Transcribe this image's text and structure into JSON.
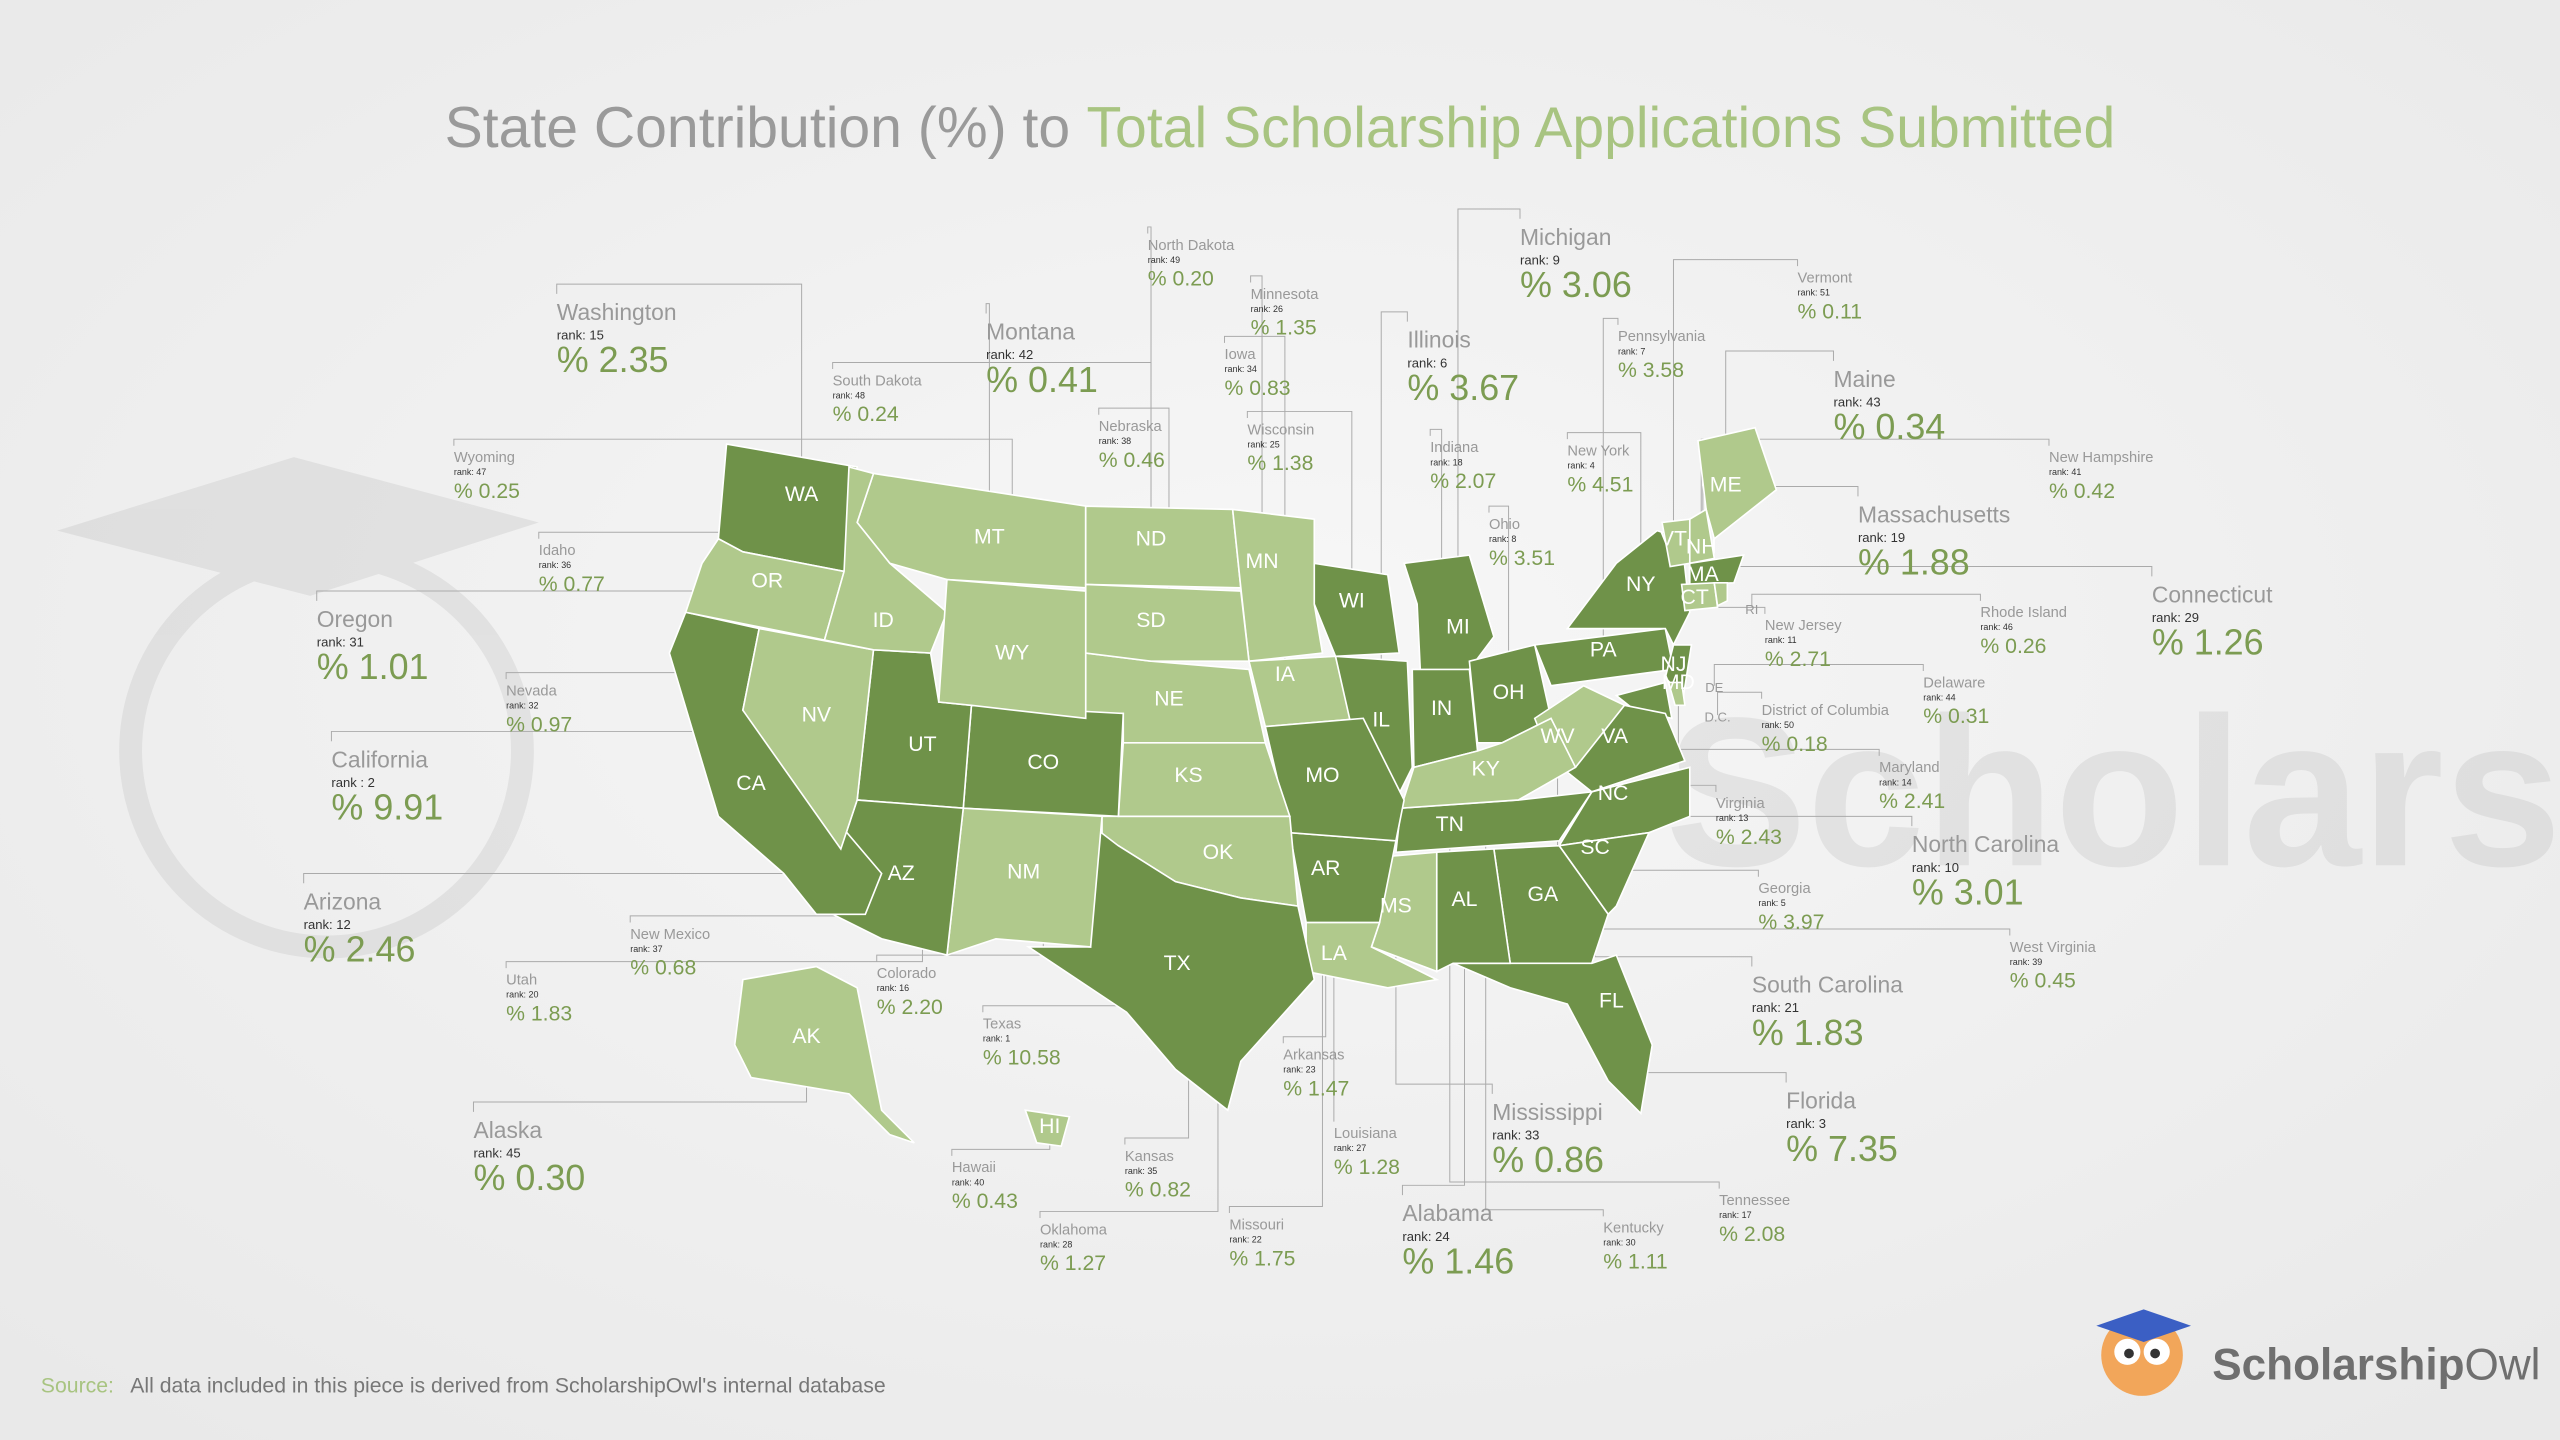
{
  "title": {
    "lead": "State Contribution (%) to",
    "highlight": "Total Scholarship Applications Submitted"
  },
  "colors": {
    "dark": "#6f9249",
    "light": "#b0c98c"
  },
  "states": [
    {
      "abbr": "WA",
      "name": "Washington",
      "rank": "rank: 15",
      "share": "% 2.35",
      "shade": "dark"
    },
    {
      "abbr": "MT",
      "name": "Montana",
      "rank": "rank: 42",
      "share": "% 0.41",
      "shade": "light"
    },
    {
      "abbr": "ND",
      "name": "North Dakota",
      "rank": "rank: 49",
      "share": "% 0.20",
      "shade": "light"
    },
    {
      "abbr": "MN",
      "name": "Minnesota",
      "rank": "rank: 26",
      "share": "% 1.35",
      "shade": "light"
    },
    {
      "abbr": "IA",
      "name": "Iowa",
      "rank": "rank: 34",
      "share": "% 0.83",
      "shade": "light"
    },
    {
      "abbr": "WI",
      "name": "Wisconsin",
      "rank": "rank: 25",
      "share": "% 1.38",
      "shade": "dark"
    },
    {
      "abbr": "NE",
      "name": "Nebraska",
      "rank": "rank: 38",
      "share": "% 0.46",
      "shade": "light"
    },
    {
      "abbr": "SD",
      "name": "South Dakota",
      "rank": "rank: 48",
      "share": "% 0.24",
      "shade": "light"
    },
    {
      "abbr": "MI",
      "name": "Michigan",
      "rank": "rank: 9",
      "share": "% 3.06",
      "shade": "dark"
    },
    {
      "abbr": "IL",
      "name": "Illinois",
      "rank": "rank: 6",
      "share": "% 3.67",
      "shade": "dark"
    },
    {
      "abbr": "IN",
      "name": "Indiana",
      "rank": "rank: 18",
      "share": "% 2.07",
      "shade": "dark"
    },
    {
      "abbr": "OH",
      "name": "Ohio",
      "rank": "rank: 8",
      "share": "% 3.51",
      "shade": "dark"
    },
    {
      "abbr": "PA",
      "name": "Pennsylvania",
      "rank": "rank: 7",
      "share": "% 3.58",
      "shade": "dark"
    },
    {
      "abbr": "NY",
      "name": "New York",
      "rank": "rank: 4",
      "share": "% 4.51",
      "shade": "dark"
    },
    {
      "abbr": "VT",
      "name": "Vermont",
      "rank": "rank: 51",
      "share": "% 0.11",
      "shade": "light"
    },
    {
      "abbr": "ME",
      "name": "Maine",
      "rank": "rank: 43",
      "share": "% 0.34",
      "shade": "light"
    },
    {
      "abbr": "NH",
      "name": "New Hampshire",
      "rank": "rank: 41",
      "share": "% 0.42",
      "shade": "light"
    },
    {
      "abbr": "MA",
      "name": "Massachusetts",
      "rank": "rank: 19",
      "share": "% 1.88",
      "shade": "dark"
    },
    {
      "abbr": "CT",
      "name": "Connecticut",
      "rank": "rank: 29",
      "share": "% 1.26",
      "shade": "light"
    },
    {
      "abbr": "RI",
      "name": "Rhode Island",
      "rank": "rank: 46",
      "share": "% 0.26",
      "shade": "light"
    },
    {
      "abbr": "NJ",
      "name": "New Jersey",
      "rank": "rank: 11",
      "share": "% 2.71",
      "shade": "dark"
    },
    {
      "abbr": "DE",
      "name": "Delaware",
      "rank": "rank: 44",
      "share": "% 0.31",
      "shade": "light"
    },
    {
      "abbr": "D.C.",
      "name": "District of Columbia",
      "rank": "rank: 50",
      "share": "% 0.18",
      "shade": "light"
    },
    {
      "abbr": "MD",
      "name": "Maryland",
      "rank": "rank: 14",
      "share": "% 2.41",
      "shade": "dark"
    },
    {
      "abbr": "VA",
      "name": "Virginia",
      "rank": "rank: 13",
      "share": "% 2.43",
      "shade": "dark"
    },
    {
      "abbr": "WV",
      "name": "West Virginia",
      "rank": "rank: 39",
      "share": "% 0.45",
      "shade": "light"
    },
    {
      "abbr": "NC",
      "name": "North Carolina",
      "rank": "rank: 10",
      "share": "% 3.01",
      "shade": "dark"
    },
    {
      "abbr": "SC",
      "name": "South Carolina",
      "rank": "rank: 21",
      "share": "% 1.83",
      "shade": "dark"
    },
    {
      "abbr": "GA",
      "name": "Georgia",
      "rank": "rank: 5",
      "share": "% 3.97",
      "shade": "dark"
    },
    {
      "abbr": "FL",
      "name": "Florida",
      "rank": "rank: 3",
      "share": "% 7.35",
      "shade": "dark"
    },
    {
      "abbr": "TN",
      "name": "Tennessee",
      "rank": "rank: 17",
      "share": "% 2.08",
      "shade": "dark"
    },
    {
      "abbr": "KY",
      "name": "Kentucky",
      "rank": "rank: 30",
      "share": "% 1.11",
      "shade": "light"
    },
    {
      "abbr": "AL",
      "name": "Alabama",
      "rank": "rank: 24",
      "share": "% 1.46",
      "shade": "dark"
    },
    {
      "abbr": "MS",
      "name": "Mississippi",
      "rank": "rank: 33",
      "share": "% 0.86",
      "shade": "light"
    },
    {
      "abbr": "LA",
      "name": "Louisiana",
      "rank": "rank: 27",
      "share": "% 1.28",
      "shade": "light"
    },
    {
      "abbr": "AR",
      "name": "Arkansas",
      "rank": "rank: 23",
      "share": "% 1.47",
      "shade": "dark"
    },
    {
      "abbr": "MO",
      "name": "Missouri",
      "rank": "rank: 22",
      "share": "% 1.75",
      "shade": "dark"
    },
    {
      "abbr": "OK",
      "name": "Oklahoma",
      "rank": "rank: 28",
      "share": "% 1.27",
      "shade": "light"
    },
    {
      "abbr": "KS",
      "name": "Kansas",
      "rank": "rank: 35",
      "share": "% 0.82",
      "shade": "light"
    },
    {
      "abbr": "TX",
      "name": "Texas",
      "rank": "rank: 1",
      "share": "% 10.58",
      "shade": "dark"
    },
    {
      "abbr": "HI",
      "name": "Hawaii",
      "rank": "rank: 40",
      "share": "% 0.43",
      "shade": "light"
    },
    {
      "abbr": "CO",
      "name": "Colorado",
      "rank": "rank: 16",
      "share": "% 2.20",
      "shade": "dark"
    },
    {
      "abbr": "NM",
      "name": "New Mexico",
      "rank": "rank: 37",
      "share": "% 0.68",
      "shade": "light"
    },
    {
      "abbr": "UT",
      "name": "Utah",
      "rank": "rank: 20",
      "share": "% 1.83",
      "shade": "dark"
    },
    {
      "abbr": "AZ",
      "name": "Arizona",
      "rank": "rank: 12",
      "share": "% 2.46",
      "shade": "dark"
    },
    {
      "abbr": "AK",
      "name": "Alaska",
      "rank": "rank: 45",
      "share": "% 0.30",
      "shade": "light"
    },
    {
      "abbr": "CA",
      "name": "California",
      "rank": "rank : 2",
      "share": "% 9.91",
      "shade": "dark"
    },
    {
      "abbr": "NV",
      "name": "Nevada",
      "rank": "rank: 32",
      "share": "% 0.97",
      "shade": "light"
    },
    {
      "abbr": "OR",
      "name": "Oregon",
      "rank": "rank: 31",
      "share": "% 1.01",
      "shade": "light"
    },
    {
      "abbr": "ID",
      "name": "Idaho",
      "rank": "rank: 36",
      "share": "% 0.77",
      "shade": "light"
    },
    {
      "abbr": "WY",
      "name": "Wyoming",
      "rank": "rank: 47",
      "share": "% 0.25",
      "shade": "light"
    }
  ],
  "source": {
    "label": "Source:",
    "text": "All data included in this piece is derived from ScholarshipOwl's internal database"
  },
  "logo": {
    "bold": "Scholarship",
    "light": "Owl"
  }
}
